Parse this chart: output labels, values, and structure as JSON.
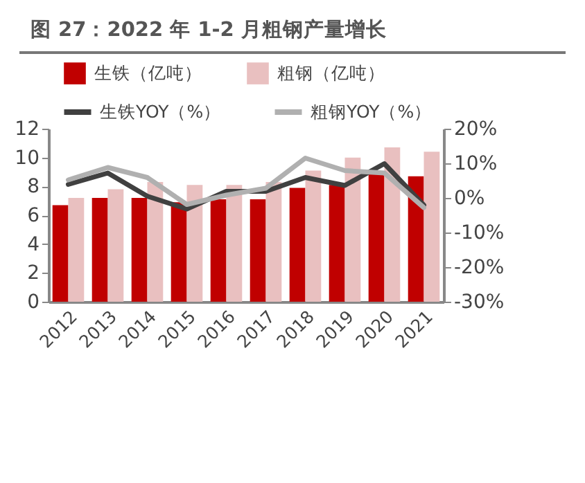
{
  "chart_data": {
    "type": "bar",
    "title": "图 27：2022 年 1-2 月粗钢产量增长",
    "categories": [
      "2012",
      "2013",
      "2014",
      "2015",
      "2016",
      "2017",
      "2018",
      "2019",
      "2020",
      "2021"
    ],
    "series": [
      {
        "name": "生铁（亿吨）",
        "color": "#c00000",
        "values": [
          6.7,
          7.2,
          7.2,
          6.9,
          7.1,
          7.1,
          7.9,
          8.1,
          8.9,
          8.7
        ]
      },
      {
        "name": "粗钢（亿吨）",
        "color": "#e9c0c0",
        "values": [
          7.2,
          7.8,
          8.3,
          8.1,
          8.1,
          8.3,
          9.1,
          10.0,
          10.7,
          10.4
        ]
      },
      {
        "name": "生铁YOY（%）",
        "type": "line",
        "axis": "y2",
        "color": "#404040",
        "values": [
          3.9,
          7.2,
          0.5,
          -3.2,
          1.9,
          1.9,
          5.9,
          3.6,
          9.9,
          -2.1
        ]
      },
      {
        "name": "粗钢YOY（%）",
        "type": "line",
        "axis": "y2",
        "color": "#b0b0b0",
        "values": [
          5.2,
          8.8,
          5.9,
          -1.9,
          0.8,
          2.8,
          11.5,
          7.9,
          7.2,
          -2.8
        ]
      }
    ],
    "ylim": [
      0,
      12
    ],
    "yticks": [
      0,
      2,
      4,
      6,
      8,
      10,
      12
    ],
    "y2lim": [
      -30,
      20
    ],
    "y2ticks": [
      {
        "value": -30,
        "label": "-30%"
      },
      {
        "value": -20,
        "label": "-20%"
      },
      {
        "value": -10,
        "label": "-10%"
      },
      {
        "value": 0,
        "label": "0%"
      },
      {
        "value": 10,
        "label": "10%"
      },
      {
        "value": 20,
        "label": "20%"
      }
    ],
    "legend": "top",
    "grid": false
  }
}
